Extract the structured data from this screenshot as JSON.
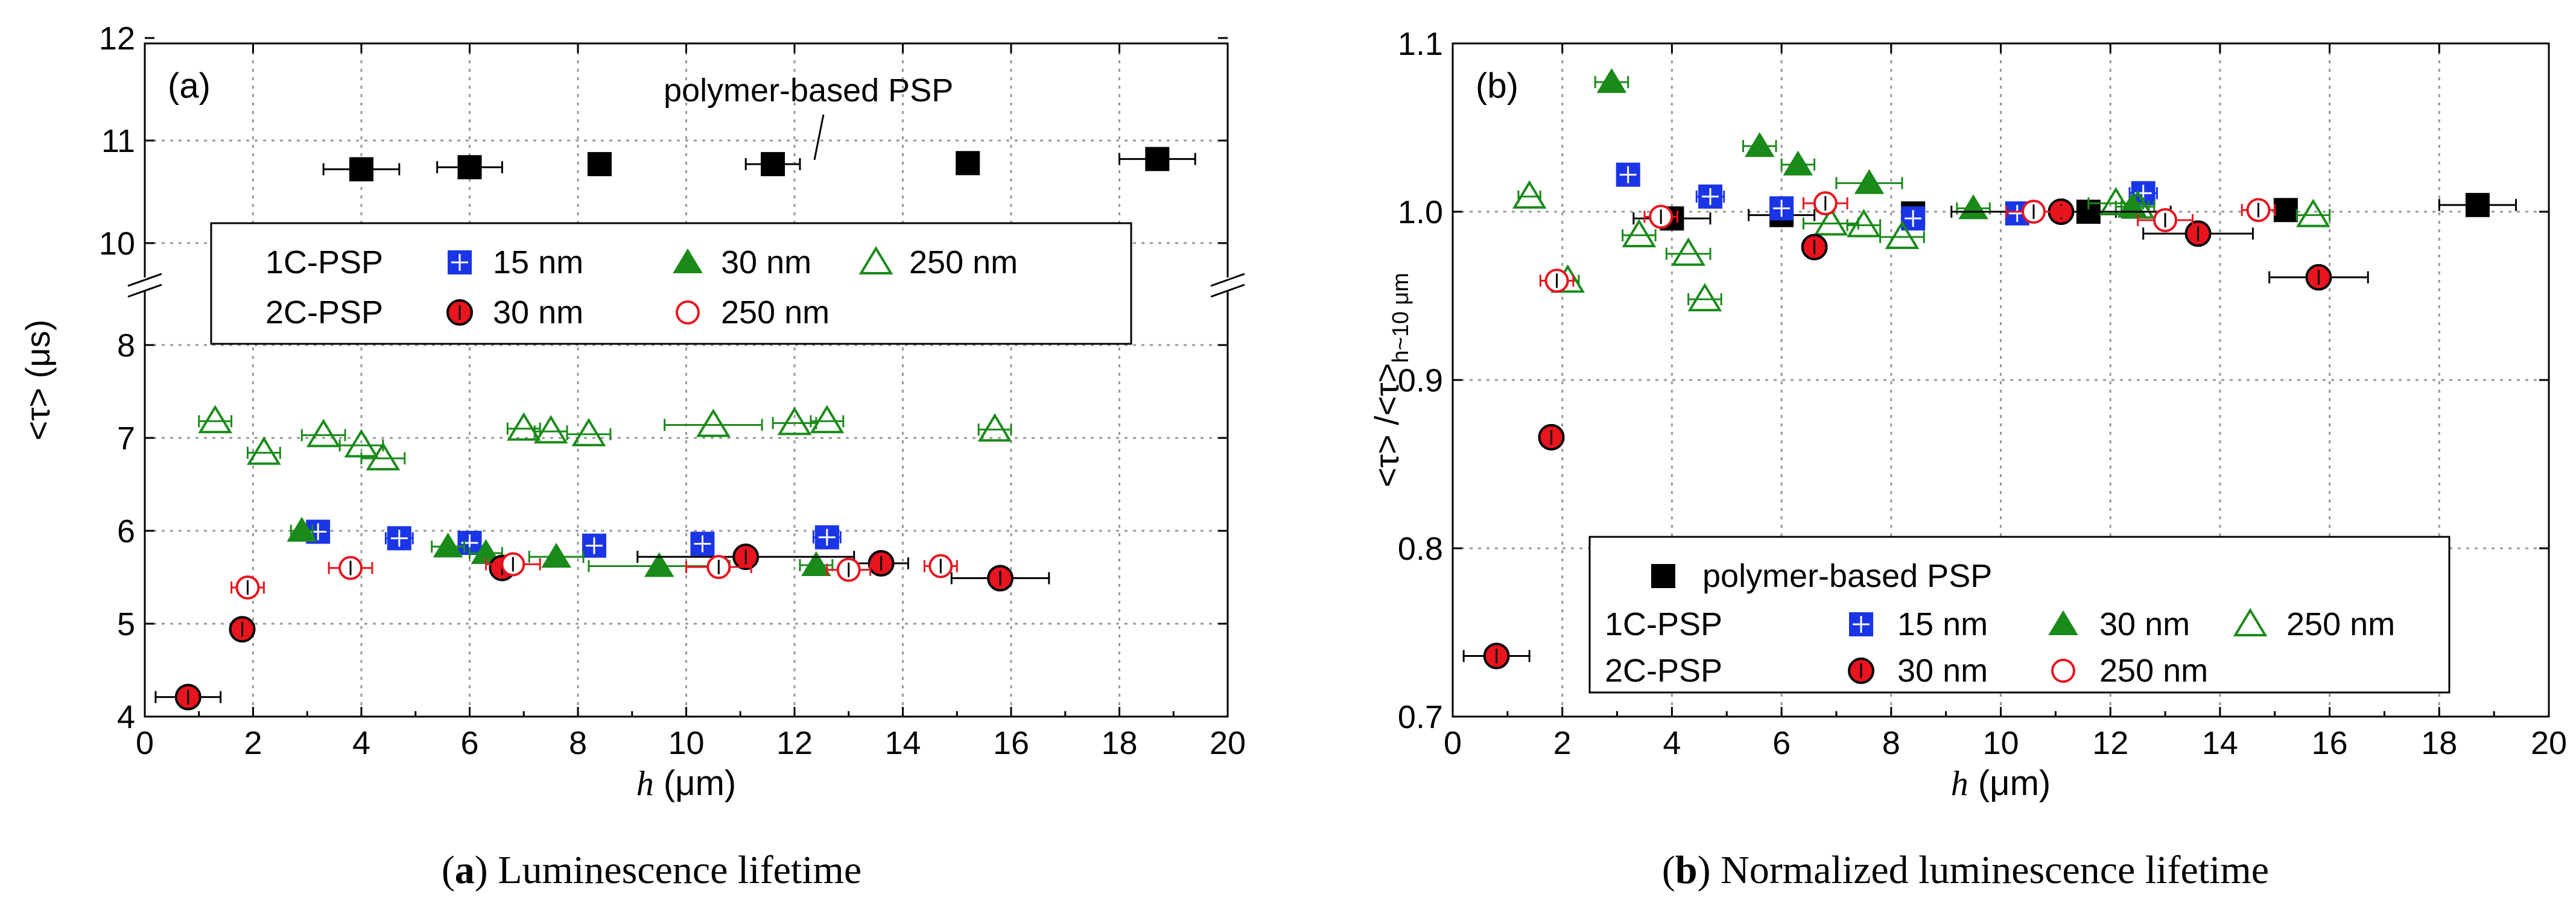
{
  "figure": {
    "captions": [
      {
        "label": "a",
        "text": " Luminescence lifetime"
      },
      {
        "label": "b",
        "text": " Normalized luminescence lifetime"
      }
    ]
  },
  "chart_data": [
    {
      "type": "scatter",
      "panel": "(a)",
      "annotation": "polymer-based PSP",
      "xlabel": {
        "var": "h",
        "unit": " (μm)"
      },
      "ylabel": "<τ> (μs)",
      "xlim": [
        0,
        20
      ],
      "xticks": [
        "0",
        "2",
        "4",
        "6",
        "8",
        "10",
        "12",
        "14",
        "16",
        "18",
        "20"
      ],
      "ylim_lower": [
        4,
        8
      ],
      "ylim_upper": [
        10,
        12
      ],
      "yticks": [
        "4",
        "5",
        "6",
        "7",
        "8",
        "10",
        "11",
        "12"
      ],
      "grid": true,
      "legend": {
        "rows": [
          {
            "group": "1C-PSP",
            "entries": [
              "15 nm",
              "30 nm",
              "250 nm"
            ]
          },
          {
            "group": "2C-PSP",
            "entries": [
              "30 nm",
              "250 nm"
            ]
          }
        ]
      },
      "series": [
        {
          "name": "polymer-based PSP",
          "marker": "square-black",
          "x": [
            4.0,
            6.0,
            8.4,
            11.6,
            15.2,
            18.7
          ],
          "y": [
            10.72,
            10.74,
            10.77,
            10.77,
            10.78,
            10.82
          ],
          "xerr": [
            0.7,
            0.6,
            0.1,
            0.5,
            0,
            0.7
          ]
        },
        {
          "name": "1C-PSP 15 nm",
          "marker": "square-blue",
          "x": [
            3.2,
            4.7,
            6.0,
            8.3,
            10.3,
            12.6
          ],
          "y": [
            5.99,
            5.92,
            5.87,
            5.84,
            5.86,
            5.93
          ],
          "xerr": [
            0.2,
            0.25,
            0.2,
            0.2,
            0.2,
            0.25
          ]
        },
        {
          "name": "1C-PSP 30 nm",
          "marker": "triangle-green",
          "x": [
            2.9,
            5.6,
            6.3,
            7.6,
            9.5,
            12.4
          ],
          "y": [
            6.0,
            5.83,
            5.76,
            5.72,
            5.62,
            5.63
          ],
          "xerr": [
            0.2,
            0.3,
            0.3,
            0.5,
            1.3,
            0.3
          ]
        },
        {
          "name": "1C-PSP 250 nm",
          "marker": "triangle-open-green",
          "x": [
            1.3,
            2.2,
            3.3,
            4.0,
            4.4,
            7.0,
            7.5,
            8.2,
            10.5,
            12.0,
            12.6,
            15.7
          ],
          "y": [
            7.18,
            6.84,
            7.03,
            6.92,
            6.78,
            7.1,
            7.07,
            7.04,
            7.14,
            7.16,
            7.18,
            7.09
          ],
          "xerr": [
            0.3,
            0.3,
            0.4,
            0.4,
            0.4,
            0.3,
            0.3,
            0.4,
            0.9,
            0.4,
            0.3,
            0.3
          ]
        },
        {
          "name": "2C-PSP 30 nm",
          "marker": "circle-red",
          "x": [
            0.8,
            1.8,
            6.6,
            11.1,
            13.6,
            15.8
          ],
          "y": [
            4.21,
            4.94,
            5.6,
            5.72,
            5.65,
            5.49
          ],
          "xerr": [
            0.6,
            0.1,
            0.2,
            2.0,
            0.5,
            0.9
          ]
        },
        {
          "name": "2C-PSP 250 nm",
          "marker": "circle-open-red",
          "x": [
            1.9,
            3.8,
            6.8,
            10.6,
            13.0,
            14.7
          ],
          "y": [
            5.39,
            5.6,
            5.64,
            5.61,
            5.58,
            5.62
          ],
          "xerr": [
            0.3,
            0.4,
            0.5,
            0.6,
            0.4,
            0.3
          ]
        }
      ]
    },
    {
      "type": "scatter",
      "panel": "(b)",
      "xlabel": {
        "var": "h",
        "unit": " (μm)"
      },
      "ylabel": {
        "main": "<τ> /<τ>",
        "sub": "h~10 μm"
      },
      "xlim": [
        0,
        20
      ],
      "xticks": [
        "0",
        "2",
        "4",
        "6",
        "8",
        "10",
        "12",
        "14",
        "16",
        "18",
        "20"
      ],
      "ylim": [
        0.7,
        1.1
      ],
      "yticks": [
        "0.7",
        "0.8",
        "0.9",
        "1.0",
        "1.1"
      ],
      "grid": true,
      "legend": {
        "rows": [
          {
            "group": "",
            "entries": [
              "polymer-based PSP"
            ]
          },
          {
            "group": "1C-PSP",
            "entries": [
              "15 nm",
              "30 nm",
              "250 nm"
            ]
          },
          {
            "group": "2C-PSP",
            "entries": [
              "30 nm",
              "250 nm"
            ]
          }
        ]
      },
      "series": [
        {
          "name": "polymer-based PSP",
          "marker": "square-black",
          "x": [
            4.0,
            6.0,
            8.4,
            11.6,
            15.2,
            18.7
          ],
          "y": [
            0.996,
            0.998,
            0.999,
            1.0,
            1.001,
            1.004
          ],
          "xerr": [
            0.7,
            0.6,
            0.1,
            0.5,
            0,
            0.7
          ]
        },
        {
          "name": "1C-PSP 15 nm",
          "marker": "square-blue",
          "x": [
            3.2,
            4.7,
            6.0,
            8.4,
            10.3,
            12.6
          ],
          "y": [
            1.022,
            1.009,
            1.002,
            0.996,
            0.999,
            1.011
          ],
          "xerr": [
            0.2,
            0.25,
            0.2,
            0.2,
            0.2,
            0.25
          ]
        },
        {
          "name": "1C-PSP 30 nm",
          "marker": "triangle-green",
          "x": [
            2.9,
            5.6,
            6.3,
            7.6,
            9.5,
            12.4
          ],
          "y": [
            1.077,
            1.039,
            1.028,
            1.017,
            1.002,
            1.003
          ],
          "xerr": [
            0.3,
            0.3,
            0.3,
            0.6,
            0.3,
            0.3
          ]
        },
        {
          "name": "1C-PSP 250 nm",
          "marker": "triangle-open-green",
          "x": [
            1.4,
            2.1,
            3.4,
            4.3,
            4.6,
            6.9,
            7.5,
            8.2,
            12.1,
            12.5,
            15.7
          ],
          "y": [
            1.009,
            0.959,
            0.986,
            0.975,
            0.948,
            0.993,
            0.992,
            0.985,
            1.005,
            1.003,
            0.998
          ],
          "xerr": [
            0.2,
            0.2,
            0.3,
            0.4,
            0.3,
            0.5,
            0.3,
            0.4,
            0.5,
            0.3,
            0.3
          ]
        },
        {
          "name": "2C-PSP 30 nm",
          "marker": "circle-red",
          "x": [
            0.8,
            1.8,
            6.6,
            11.1,
            13.6,
            15.8
          ],
          "y": [
            0.736,
            0.866,
            0.979,
            1.0,
            0.987,
            0.961
          ],
          "xerr": [
            0.6,
            0.1,
            0.2,
            2.0,
            1.0,
            0.9
          ]
        },
        {
          "name": "2C-PSP 250 nm",
          "marker": "circle-open-red",
          "x": [
            1.9,
            3.8,
            6.8,
            10.6,
            13.0,
            14.7
          ],
          "y": [
            0.959,
            0.997,
            1.005,
            1.0,
            0.995,
            1.001
          ],
          "xerr": [
            0.3,
            0.3,
            0.4,
            0.5,
            0.5,
            0.3
          ]
        }
      ]
    }
  ]
}
